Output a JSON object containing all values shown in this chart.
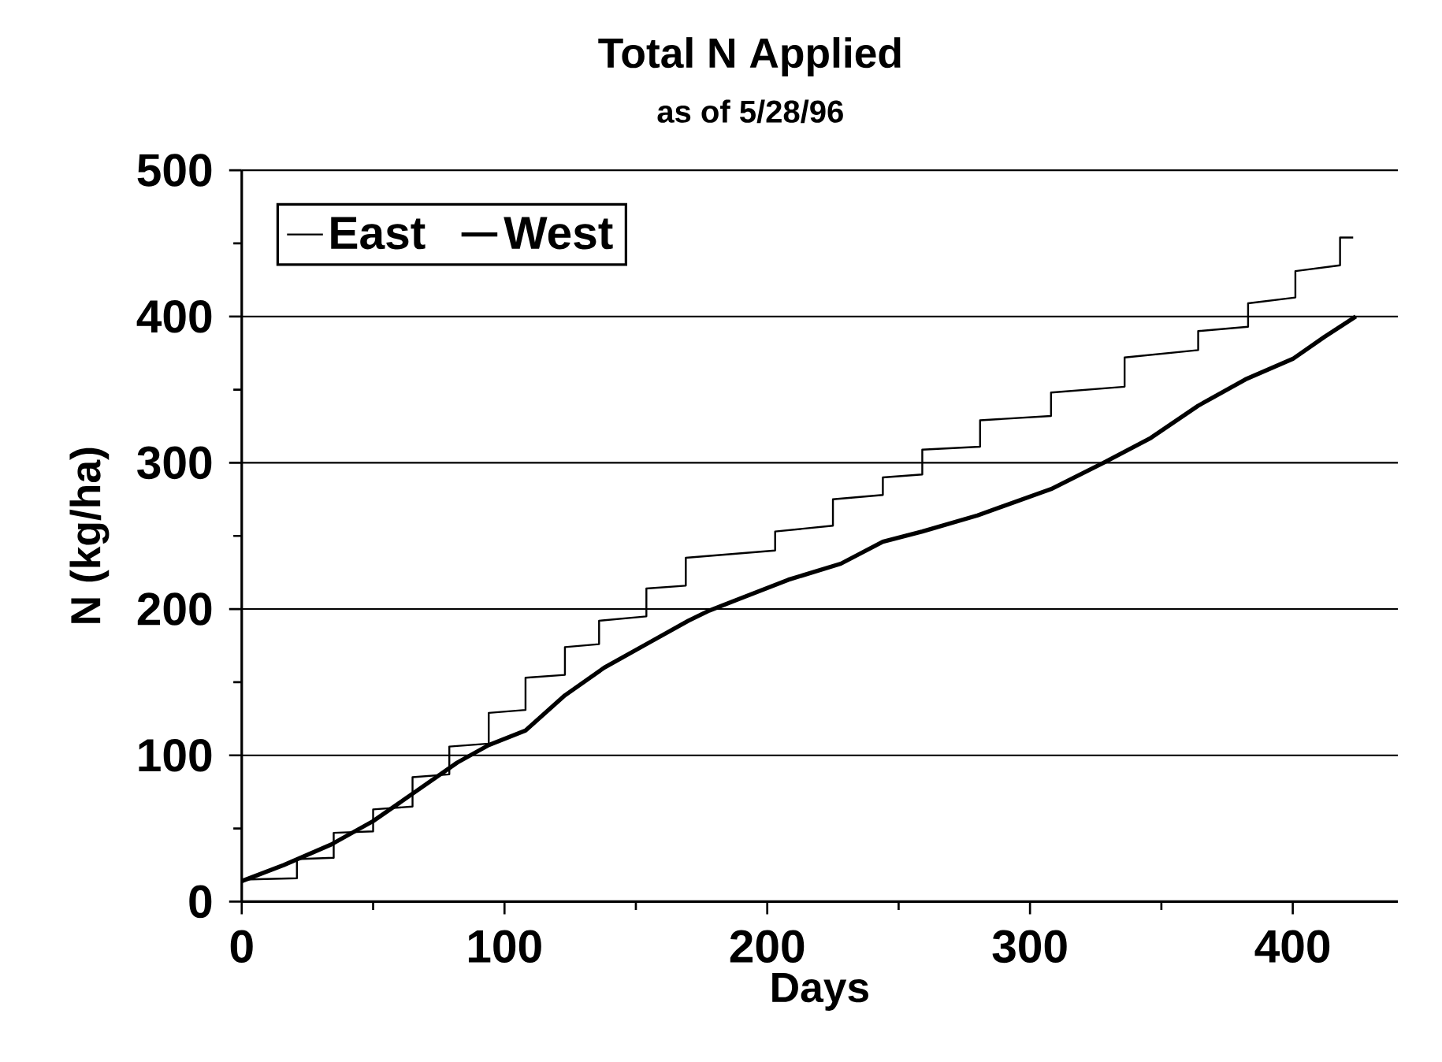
{
  "chart_data": {
    "type": "line",
    "title": "Total N Applied",
    "subtitle": "as of 5/28/96",
    "xlabel": "Days",
    "ylabel": "N (kg/ha)",
    "xlim": [
      0,
      440
    ],
    "ylim": [
      0,
      500
    ],
    "xticks": [
      0,
      {
        "value": 50,
        "label": null
      },
      100,
      {
        "value": 150,
        "label": null
      },
      200,
      {
        "value": 250,
        "label": null
      },
      300,
      {
        "value": 350,
        "label": null
      },
      400
    ],
    "yticks": [
      0,
      {
        "value": 50,
        "label": null
      },
      100,
      {
        "value": 150,
        "label": null
      },
      200,
      {
        "value": 250,
        "label": null
      },
      300,
      {
        "value": 350,
        "label": null
      },
      400,
      {
        "value": 450,
        "label": null
      },
      500
    ],
    "grid": "y",
    "legend": "top left",
    "series": [
      {
        "name": "East",
        "color": "#000000",
        "x": [
          0,
          21,
          21,
          35,
          35,
          50,
          50,
          65,
          65,
          79,
          79,
          94,
          94,
          108,
          108,
          123,
          123,
          136,
          136,
          154,
          154,
          169,
          169,
          203,
          203,
          225,
          225,
          244,
          244,
          259,
          259,
          281,
          281,
          308,
          308,
          336,
          336,
          364,
          364,
          383,
          383,
          401,
          401,
          418,
          418,
          423
        ],
        "values": [
          15,
          16,
          29,
          30,
          47,
          48,
          63,
          65,
          85,
          87,
          106,
          108,
          129,
          131,
          153,
          155,
          174,
          176,
          192,
          195,
          214,
          216,
          235,
          240,
          253,
          257,
          275,
          278,
          290,
          292,
          309,
          311,
          329,
          332,
          348,
          352,
          372,
          377,
          390,
          393,
          409,
          413,
          431,
          435,
          454,
          454
        ]
      },
      {
        "name": "West",
        "color": "#000000",
        "x": [
          0,
          16,
          34,
          50,
          66,
          82,
          94,
          108,
          123,
          138,
          155,
          170,
          178,
          208,
          228,
          244,
          259,
          280,
          308,
          328,
          346,
          364,
          382,
          400,
          412,
          424
        ],
        "values": [
          14,
          25,
          39,
          55,
          75,
          95,
          107,
          117,
          141,
          160,
          177,
          192,
          199,
          220,
          231,
          246,
          253,
          264,
          282,
          300,
          317,
          339,
          357,
          371,
          386,
          400
        ]
      }
    ]
  }
}
